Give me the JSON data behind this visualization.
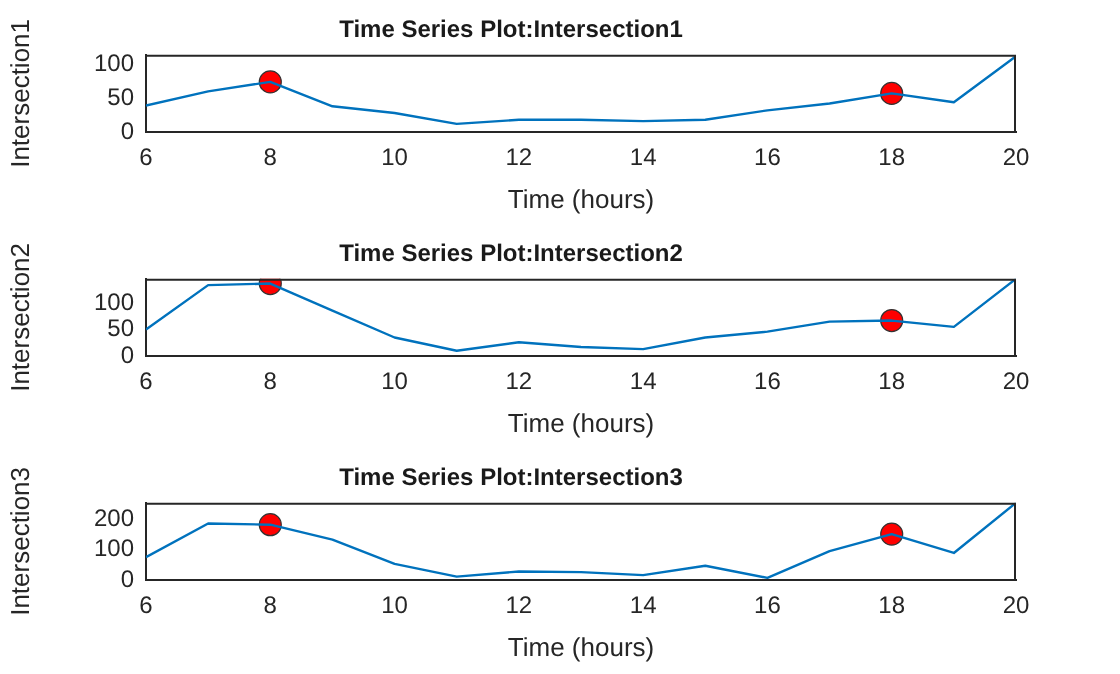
{
  "chart_data": [
    {
      "type": "line",
      "title": "Time Series Plot:Intersection1",
      "xlabel": "Time (hours)",
      "ylabel": "Intersection1",
      "xlim": [
        6,
        20
      ],
      "xticks": [
        6,
        8,
        10,
        12,
        14,
        16,
        18,
        20
      ],
      "ylim": [
        0,
        114
      ],
      "yticks": [
        0,
        50,
        100
      ],
      "series": [
        {
          "type": "line",
          "color": "#0072bd",
          "marker": "none",
          "x": [
            6,
            7,
            8,
            9,
            10,
            11,
            12,
            13,
            14,
            15,
            16,
            17,
            18,
            19,
            20
          ],
          "values": [
            39,
            60,
            74,
            38,
            28,
            12,
            18,
            18,
            16,
            18,
            32,
            42,
            57,
            44,
            112
          ]
        },
        {
          "type": "scatter",
          "color": "#ff0000",
          "marker": "circle",
          "x": [
            8,
            18
          ],
          "values": [
            74,
            57
          ]
        }
      ]
    },
    {
      "type": "line",
      "title": "Time Series Plot:Intersection2",
      "xlabel": "Time (hours)",
      "ylabel": "Intersection2",
      "xlim": [
        6,
        20
      ],
      "xticks": [
        6,
        8,
        10,
        12,
        14,
        16,
        18,
        20
      ],
      "ylim": [
        0,
        146
      ],
      "yticks": [
        0,
        50,
        100
      ],
      "series": [
        {
          "type": "line",
          "color": "#0072bd",
          "marker": "none",
          "x": [
            6,
            7,
            8,
            9,
            10,
            11,
            12,
            13,
            14,
            15,
            16,
            17,
            18,
            19,
            20
          ],
          "values": [
            50,
            134,
            137,
            86,
            35,
            10,
            26,
            17,
            13,
            35,
            46,
            65,
            67,
            55,
            146
          ]
        },
        {
          "type": "scatter",
          "color": "#ff0000",
          "marker": "circle",
          "x": [
            8,
            18
          ],
          "values": [
            137,
            67
          ]
        }
      ]
    },
    {
      "type": "line",
      "title": "Time Series Plot:Intersection3",
      "xlabel": "Time (hours)",
      "ylabel": "Intersection3",
      "xlim": [
        6,
        20
      ],
      "xticks": [
        6,
        8,
        10,
        12,
        14,
        16,
        18,
        20
      ],
      "ylim": [
        0,
        254
      ],
      "yticks": [
        0,
        100,
        200
      ],
      "series": [
        {
          "type": "line",
          "color": "#0072bd",
          "marker": "none",
          "x": [
            6,
            7,
            8,
            9,
            10,
            11,
            12,
            13,
            14,
            15,
            16,
            17,
            18,
            19,
            20
          ],
          "values": [
            75,
            186,
            182,
            133,
            53,
            11,
            28,
            26,
            16,
            47,
            7,
            95,
            151,
            89,
            254
          ]
        },
        {
          "type": "scatter",
          "color": "#ff0000",
          "marker": "circle",
          "x": [
            8,
            18
          ],
          "values": [
            182,
            151
          ]
        }
      ]
    }
  ]
}
